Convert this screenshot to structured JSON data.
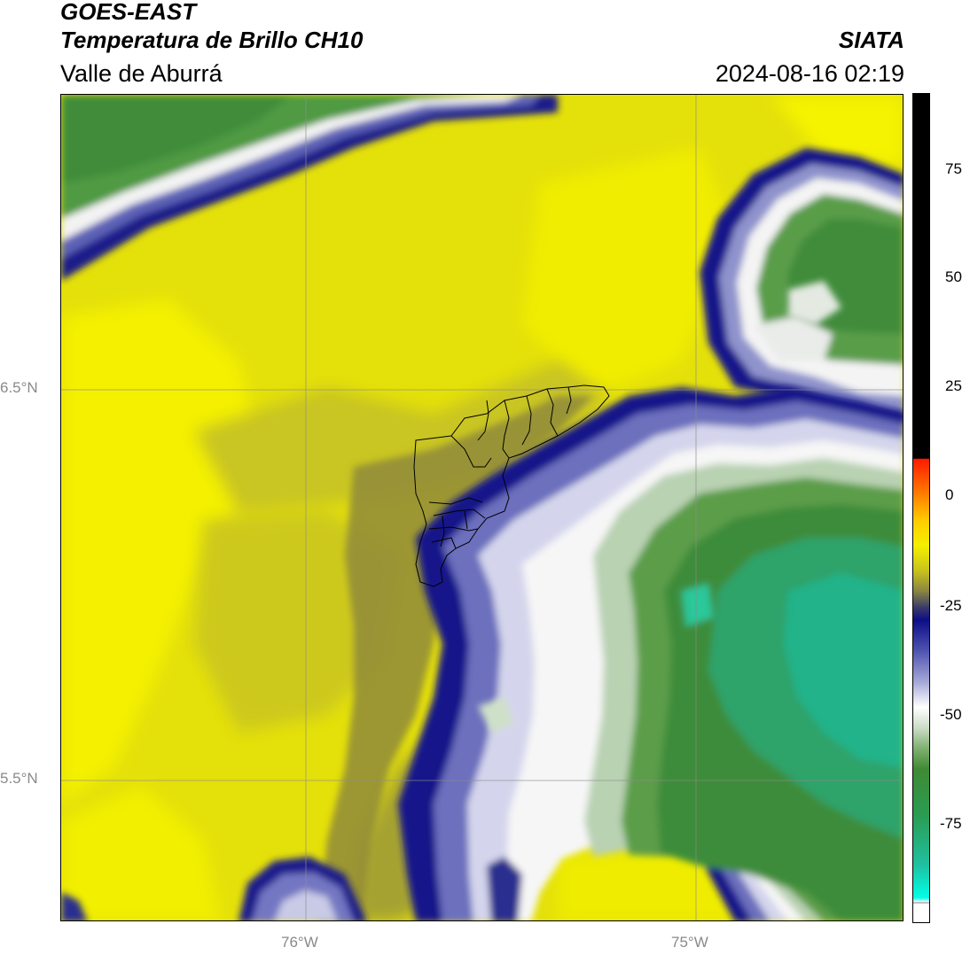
{
  "header": {
    "satellite": "GOES-EAST",
    "product": "Temperatura de Brillo CH10",
    "region": "Valle de Aburrá",
    "agency": "SIATA",
    "timestamp": "2024-08-16 02:19"
  },
  "map": {
    "lat_labels": [
      "6.5°N",
      "5.5°N"
    ],
    "lon_labels": [
      "76°W",
      "75°W"
    ]
  },
  "colorbar": {
    "ticks": [
      "75",
      "50",
      "25",
      "0",
      "-25",
      "-50",
      "-75"
    ]
  }
}
